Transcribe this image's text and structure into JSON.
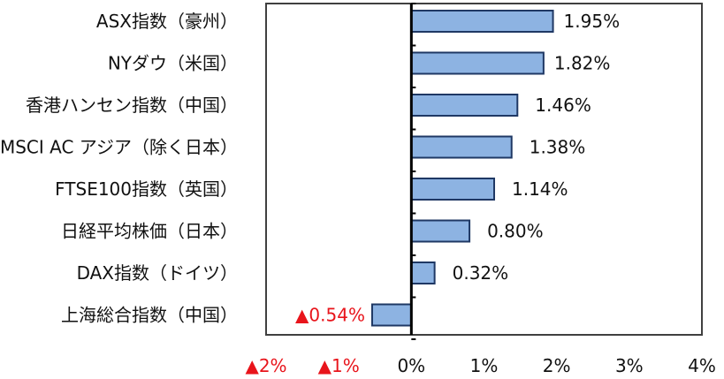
{
  "chart_data": {
    "type": "bar",
    "orientation": "horizontal",
    "categories": [
      "ASX指数（豪州）",
      "NYダウ（米国）",
      "香港ハンセン指数（中国）",
      "MSCI AC アジア（除く日本）",
      "FTSE100指数（英国）",
      "日経平均株価（日本）",
      "DAX指数（ドイツ）",
      "上海総合指数（中国）"
    ],
    "values": [
      1.95,
      1.82,
      1.46,
      1.38,
      1.14,
      0.8,
      0.32,
      -0.54
    ],
    "data_labels": [
      "1.95%",
      "1.82%",
      "1.46%",
      "1.38%",
      "1.14%",
      "0.80%",
      "0.32%",
      "▲0.54%"
    ],
    "xlim": [
      -2,
      4
    ],
    "x_ticks": [
      -2,
      -1,
      0,
      1,
      2,
      3,
      4
    ],
    "x_tick_labels": [
      "▲2%",
      "▲1%",
      "0%",
      "1%",
      "2%",
      "3%",
      "4%"
    ],
    "title": "",
    "xlabel": "",
    "ylabel": "",
    "grid": false,
    "colors": {
      "bar_fill": "#8DB3E2",
      "bar_stroke": "#1F3864",
      "negative_text": "#E8141B",
      "text": "#111111",
      "zero_line": "#000000",
      "frame": "#404040"
    }
  }
}
